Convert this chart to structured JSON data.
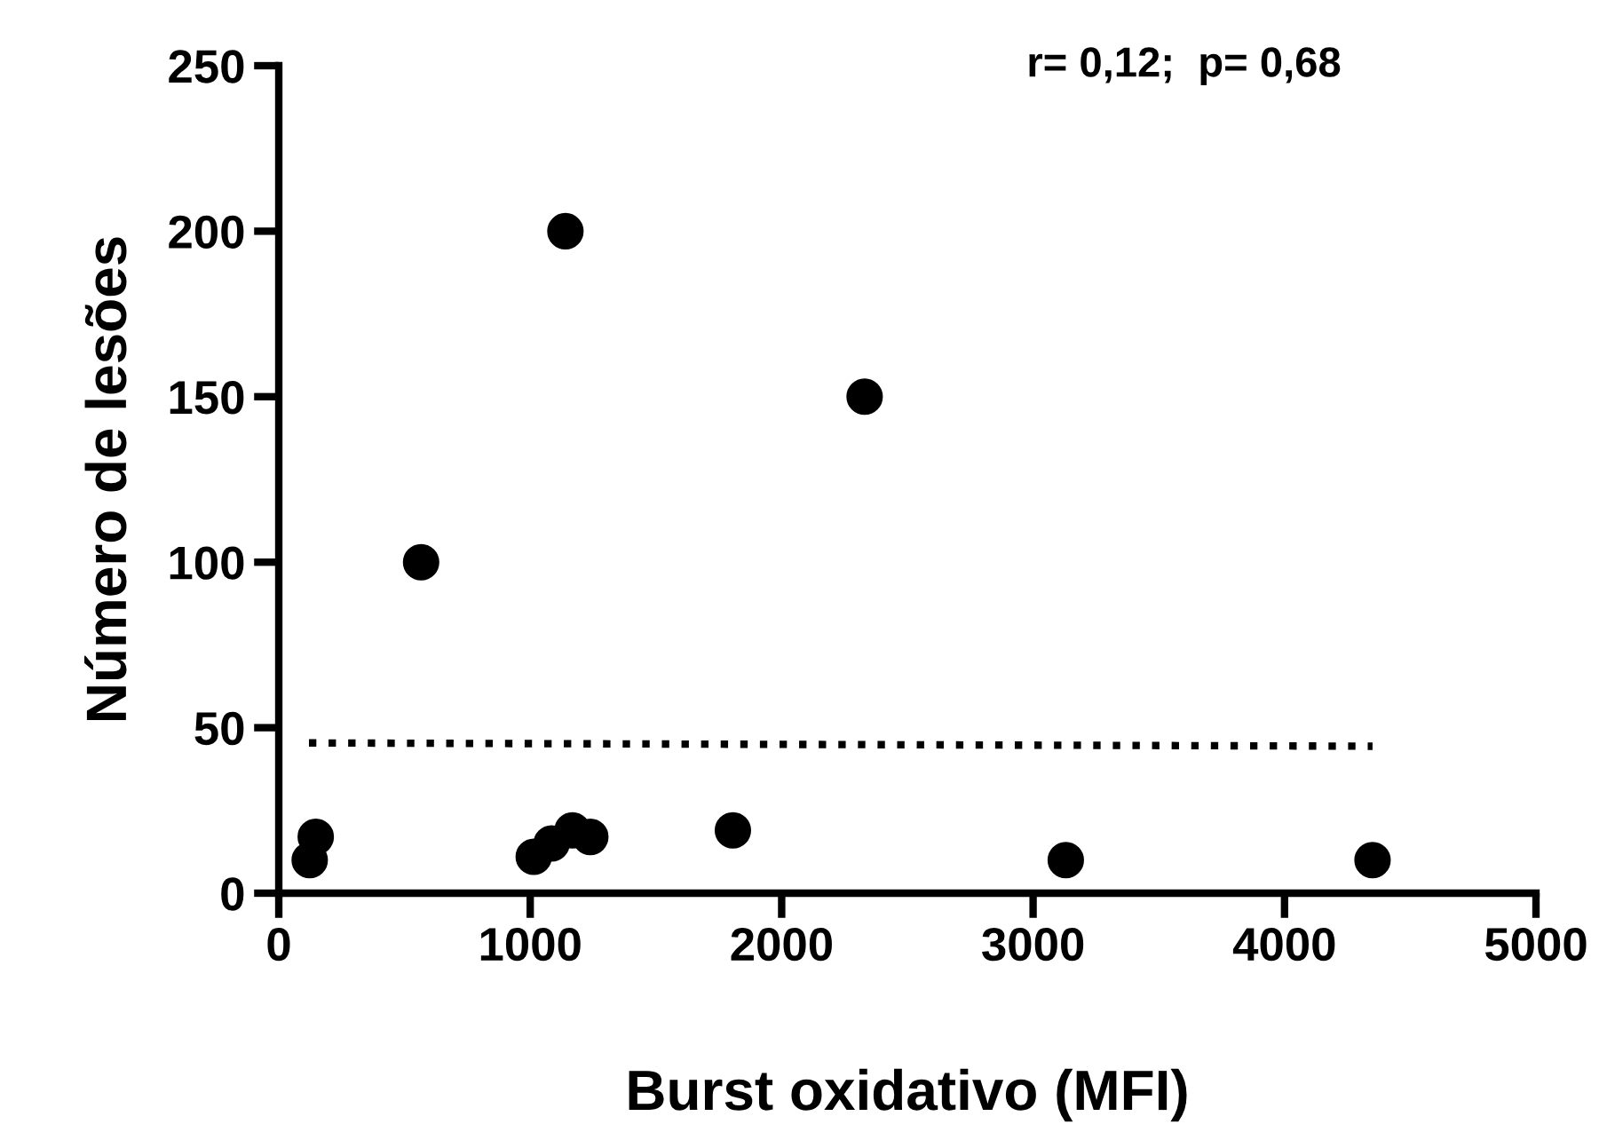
{
  "chart_data": {
    "type": "scatter",
    "xlabel": "Burst oxidativo (MFI)",
    "ylabel": "Número de lesões",
    "annotations": [
      "r= 0,12;  p= 0,68"
    ],
    "xlim": [
      0,
      5000
    ],
    "xticks": [
      0,
      1000,
      2000,
      3000,
      4000,
      5000
    ],
    "ylim": [
      0,
      250
    ],
    "yticks": [
      0,
      50,
      100,
      150,
      200,
      250
    ],
    "grid": false,
    "series": [
      {
        "color": "#000000",
        "marker": "circle",
        "x": [
          123,
          147,
          1014,
          1085,
          1168,
          1239,
          1806,
          3130,
          4350,
          566,
          1140,
          2330
        ],
        "values": [
          10,
          17,
          11,
          15,
          19,
          17,
          19,
          10,
          10,
          100,
          200,
          150
        ]
      },
      {
        "type": "line",
        "color": "#000000",
        "line_style": "dotted",
        "marker": "none",
        "x": [
          120,
          4350
        ],
        "values": [
          45.4,
          44.4
        ]
      }
    ]
  }
}
